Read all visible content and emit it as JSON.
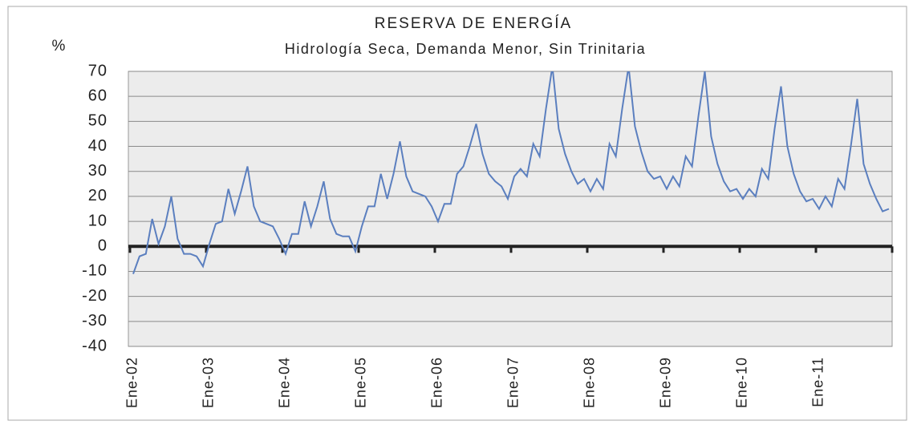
{
  "chart_data": {
    "type": "line",
    "title": "RESERVA DE ENERGÍA",
    "subtitle": "Hidrología Seca, Demanda Menor, Sin Trinitaria",
    "y_label": "%",
    "categories": [
      "Ene-02",
      null,
      null,
      null,
      null,
      null,
      null,
      null,
      null,
      null,
      null,
      null,
      "Ene-03",
      null,
      null,
      null,
      null,
      null,
      null,
      null,
      null,
      null,
      null,
      null,
      "Ene-04",
      null,
      null,
      null,
      null,
      null,
      null,
      null,
      null,
      null,
      null,
      null,
      "Ene-05",
      null,
      null,
      null,
      null,
      null,
      null,
      null,
      null,
      null,
      null,
      null,
      "Ene-06",
      null,
      null,
      null,
      null,
      null,
      null,
      null,
      null,
      null,
      null,
      null,
      "Ene-07",
      null,
      null,
      null,
      null,
      null,
      null,
      null,
      null,
      null,
      null,
      null,
      "Ene-08",
      null,
      null,
      null,
      null,
      null,
      null,
      null,
      null,
      null,
      null,
      null,
      "Ene-09",
      null,
      null,
      null,
      null,
      null,
      null,
      null,
      null,
      null,
      null,
      null,
      "Ene-10",
      null,
      null,
      null,
      null,
      null,
      null,
      null,
      null,
      null,
      null,
      null,
      "Ene-11",
      null,
      null,
      null,
      null,
      null,
      null,
      null,
      null,
      null,
      null,
      null
    ],
    "series": [
      {
        "color": "#5b7fbf",
        "values": [
          -11,
          -4,
          -3,
          11,
          1,
          8,
          20,
          3,
          -3,
          -3,
          -4,
          -8,
          1,
          9,
          10,
          23,
          13,
          22,
          32,
          16,
          10,
          9,
          8,
          3,
          -3,
          5,
          5,
          18,
          8,
          16,
          26,
          11,
          5,
          4,
          4,
          -2,
          8,
          16,
          16,
          29,
          19,
          29,
          42,
          28,
          22,
          21,
          20,
          16,
          10,
          17,
          17,
          29,
          32,
          40,
          49,
          37,
          29,
          26,
          24,
          19,
          28,
          31,
          28,
          41,
          36,
          55,
          72,
          47,
          37,
          30,
          25,
          27,
          22,
          27,
          23,
          41,
          36,
          55,
          72,
          48,
          38,
          30,
          27,
          28,
          23,
          28,
          24,
          36,
          32,
          52,
          70,
          44,
          33,
          26,
          22,
          23,
          19,
          23,
          20,
          31,
          27,
          47,
          64,
          40,
          29,
          22,
          18,
          19,
          15,
          20,
          16,
          27,
          23,
          40,
          59,
          33,
          25,
          19,
          14,
          15
        ]
      }
    ],
    "ylim": [
      -40,
      70
    ],
    "yticks": [
      -40,
      -30,
      -20,
      -10,
      0,
      10,
      20,
      30,
      40,
      50,
      60,
      70
    ],
    "grid": true,
    "negative_tick_color": "#c97a7a"
  }
}
